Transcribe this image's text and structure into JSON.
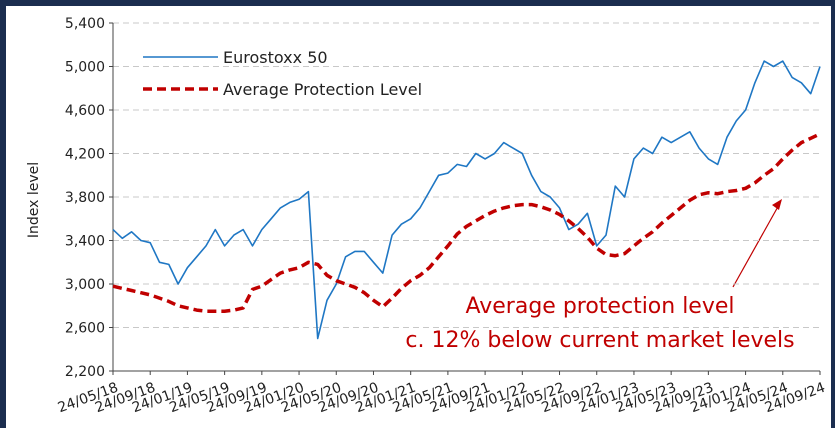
{
  "chart_data": {
    "type": "line",
    "ylabel": "Index level",
    "ylim": [
      2200,
      5400
    ],
    "yticks": [
      {
        "value": 2200,
        "label": "2,200"
      },
      {
        "value": 2600,
        "label": "2,600"
      },
      {
        "value": 3000,
        "label": "3,000"
      },
      {
        "value": 3400,
        "label": "3,400"
      },
      {
        "value": 3800,
        "label": "3,800"
      },
      {
        "value": 4200,
        "label": "4,200"
      },
      {
        "value": 4600,
        "label": "4,600"
      },
      {
        "value": 5000,
        "label": "5,000"
      },
      {
        "value": 5400,
        "label": "5,400"
      }
    ],
    "grid": true,
    "legend": "upper left",
    "xticks": [
      "24/05/18",
      "24/09/18",
      "24/01/19",
      "24/05/19",
      "24/09/19",
      "24/01/20",
      "24/05/20",
      "24/09/20",
      "24/01/21",
      "24/05/21",
      "24/09/21",
      "24/01/22",
      "24/05/22",
      "24/09/22",
      "24/01/23",
      "24/05/23",
      "24/09/23",
      "24/01/24",
      "24/05/24",
      "24/09/24"
    ],
    "x": [
      "24/05/18",
      "24/06/18",
      "24/07/18",
      "24/08/18",
      "24/09/18",
      "24/10/18",
      "24/11/18",
      "24/12/18",
      "24/01/19",
      "24/02/19",
      "24/03/19",
      "24/04/19",
      "24/05/19",
      "24/06/19",
      "24/07/19",
      "24/08/19",
      "24/09/19",
      "24/10/19",
      "24/11/19",
      "24/12/19",
      "24/01/20",
      "24/02/20",
      "24/03/20",
      "24/04/20",
      "24/05/20",
      "24/06/20",
      "24/07/20",
      "24/08/20",
      "24/09/20",
      "24/10/20",
      "24/11/20",
      "24/12/20",
      "24/01/21",
      "24/02/21",
      "24/03/21",
      "24/04/21",
      "24/05/21",
      "24/06/21",
      "24/07/21",
      "24/08/21",
      "24/09/21",
      "24/10/21",
      "24/11/21",
      "24/12/21",
      "24/01/22",
      "24/02/22",
      "24/03/22",
      "24/04/22",
      "24/05/22",
      "24/06/22",
      "24/07/22",
      "24/08/22",
      "24/09/22",
      "24/10/22",
      "24/11/22",
      "24/12/22",
      "24/01/23",
      "24/02/23",
      "24/03/23",
      "24/04/23",
      "24/05/23",
      "24/06/23",
      "24/07/23",
      "24/08/23",
      "24/09/23",
      "24/10/23",
      "24/11/23",
      "24/12/23",
      "24/01/24",
      "24/02/24",
      "24/03/24",
      "24/04/24",
      "24/05/24",
      "24/06/24",
      "24/07/24",
      "24/08/24",
      "24/09/24"
    ],
    "series": [
      {
        "name": "Eurostoxx 50",
        "color": "#1f77c4",
        "style": "solid",
        "values": [
          3500,
          3420,
          3480,
          3400,
          3380,
          3200,
          3180,
          3000,
          3150,
          3250,
          3350,
          3500,
          3350,
          3450,
          3500,
          3350,
          3500,
          3600,
          3700,
          3750,
          3780,
          3850,
          2500,
          2850,
          3000,
          3250,
          3300,
          3300,
          3200,
          3100,
          3450,
          3550,
          3600,
          3700,
          3850,
          4000,
          4020,
          4100,
          4080,
          4200,
          4150,
          4200,
          4300,
          4250,
          4200,
          4000,
          3850,
          3800,
          3700,
          3500,
          3550,
          3650,
          3350,
          3450,
          3900,
          3800,
          4150,
          4250,
          4200,
          4350,
          4300,
          4350,
          4400,
          4250,
          4150,
          4100,
          4350,
          4500,
          4600,
          4850,
          5050,
          5000,
          5050,
          4900,
          4850,
          4750,
          5000
        ]
      },
      {
        "name": "Average Protection Level",
        "color": "#c00000",
        "style": "dashed",
        "values": [
          2980,
          2960,
          2940,
          2920,
          2900,
          2870,
          2840,
          2800,
          2780,
          2760,
          2750,
          2750,
          2750,
          2760,
          2780,
          2950,
          2980,
          3040,
          3100,
          3130,
          3150,
          3200,
          3180,
          3080,
          3030,
          3000,
          2970,
          2920,
          2850,
          2790,
          2870,
          2960,
          3030,
          3080,
          3150,
          3250,
          3350,
          3460,
          3530,
          3580,
          3630,
          3670,
          3700,
          3720,
          3730,
          3730,
          3710,
          3680,
          3640,
          3580,
          3510,
          3430,
          3330,
          3270,
          3260,
          3280,
          3350,
          3420,
          3480,
          3560,
          3630,
          3700,
          3770,
          3820,
          3840,
          3830,
          3850,
          3860,
          3880,
          3930,
          4000,
          4060,
          4150,
          4230,
          4300,
          4340,
          4380
        ]
      }
    ],
    "annotations": [
      "Average protection level",
      "c. 12% below current market levels"
    ]
  }
}
